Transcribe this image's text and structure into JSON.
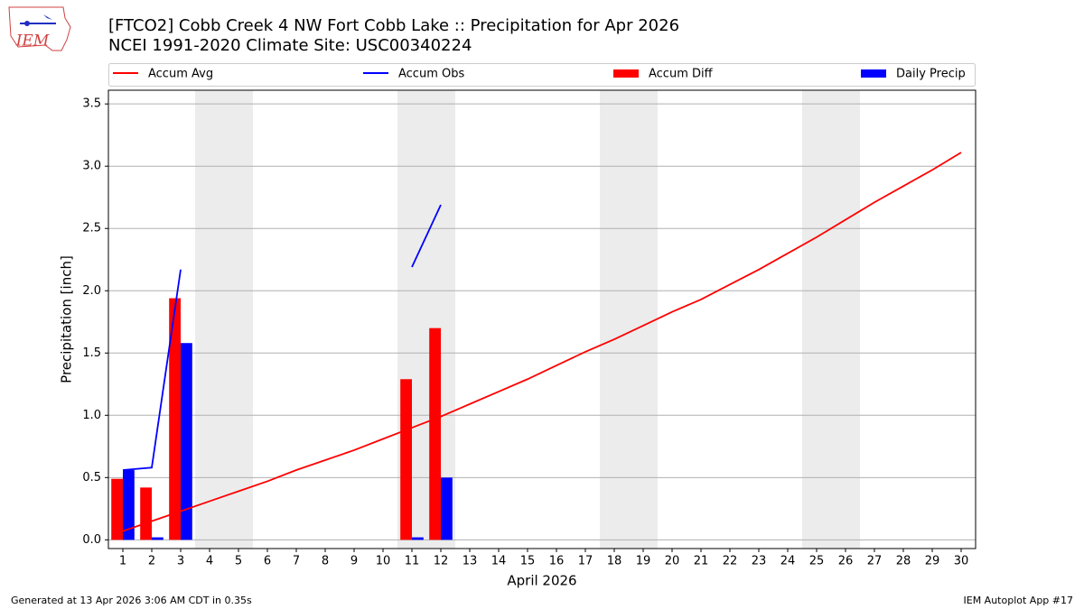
{
  "logo_text": "IEM",
  "chart_data": {
    "type": "combo",
    "title": "[FTCO2] Cobb Creek 4 NW Fort Cobb Lake :: Precipitation for Apr 2026",
    "subtitle": "NCEI 1991-2020 Climate Site: USC00340224",
    "x_label": "April 2026",
    "y_label": "Precipitation [inch]",
    "x": [
      1,
      2,
      3,
      4,
      5,
      6,
      7,
      8,
      9,
      10,
      11,
      12,
      13,
      14,
      15,
      16,
      17,
      18,
      19,
      20,
      21,
      22,
      23,
      24,
      25,
      26,
      27,
      28,
      29,
      30
    ],
    "xlim": [
      0.5,
      30.5
    ],
    "xticks": [
      1,
      2,
      3,
      4,
      5,
      6,
      7,
      8,
      9,
      10,
      11,
      12,
      13,
      14,
      15,
      16,
      17,
      18,
      19,
      20,
      21,
      22,
      23,
      24,
      25,
      26,
      27,
      28,
      29,
      30
    ],
    "ylim": [
      -0.07,
      3.61
    ],
    "yticks": [
      {
        "value": 0,
        "label": "0.0"
      },
      0.5,
      {
        "value": 1,
        "label": "1.0"
      },
      1.5,
      {
        "value": 2,
        "label": "2.0"
      },
      2.5,
      {
        "value": 3,
        "label": "3.0"
      },
      3.5
    ],
    "grid": true,
    "shaded_ranges": [
      [
        3.5,
        5.5
      ],
      [
        10.5,
        12.5
      ],
      [
        17.5,
        19.5
      ],
      [
        24.5,
        26.5
      ]
    ],
    "shade_color": "#ececec",
    "series": [
      {
        "name": "Accum Avg",
        "type": "line",
        "color": "#ff0000",
        "values": [
          0.07,
          0.15,
          0.23,
          0.31,
          0.39,
          0.47,
          0.56,
          0.64,
          0.72,
          0.81,
          0.9,
          0.99,
          1.09,
          1.19,
          1.29,
          1.4,
          1.51,
          1.61,
          1.72,
          1.83,
          1.93,
          2.05,
          2.17,
          2.3,
          2.43,
          2.57,
          2.71,
          2.84,
          2.97,
          3.11
        ]
      },
      {
        "name": "Accum Obs",
        "type": "line",
        "color": "#0000ff",
        "values": [
          0.56,
          0.58,
          2.17,
          null,
          null,
          null,
          null,
          null,
          null,
          null,
          2.19,
          2.69,
          null,
          null,
          null,
          null,
          null,
          null,
          null,
          null,
          null,
          null,
          null,
          null,
          null,
          null,
          null,
          null,
          null,
          null
        ]
      },
      {
        "name": "Accum Diff",
        "type": "bar",
        "color": "#ff0000",
        "values": [
          0.49,
          0.42,
          1.94,
          null,
          null,
          null,
          null,
          null,
          null,
          null,
          1.29,
          1.7,
          null,
          null,
          null,
          null,
          null,
          null,
          null,
          null,
          null,
          null,
          null,
          null,
          null,
          null,
          null,
          null,
          null,
          null
        ]
      },
      {
        "name": "Daily Precip",
        "type": "bar",
        "color": "#0000ff",
        "values": [
          0.56,
          0.02,
          1.58,
          null,
          null,
          null,
          null,
          null,
          null,
          null,
          0.02,
          0.5,
          null,
          null,
          null,
          null,
          null,
          null,
          null,
          null,
          null,
          null,
          null,
          null,
          null,
          null,
          null,
          null,
          null,
          null
        ]
      }
    ],
    "footer_left": "Generated at 13 Apr 2026 3:06 AM CDT in 0.35s",
    "footer_right": "IEM Autoplot App #17"
  }
}
